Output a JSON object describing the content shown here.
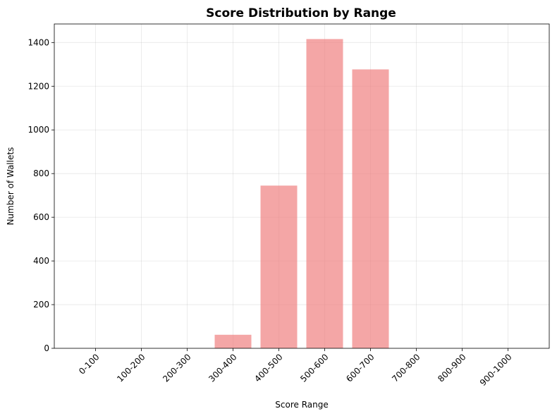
{
  "chart_data": {
    "type": "bar",
    "title": "Score Distribution by Range",
    "xlabel": "Score Range",
    "ylabel": "Number of Wallets",
    "categories": [
      "0-100",
      "100-200",
      "200-300",
      "300-400",
      "400-500",
      "500-600",
      "600-700",
      "700-800",
      "800-900",
      "900-1000"
    ],
    "values": [
      0,
      0,
      0,
      62,
      745,
      1416,
      1277,
      0,
      0,
      0
    ],
    "ylim": [
      0,
      1485
    ],
    "yticks": [
      0,
      200,
      400,
      600,
      800,
      1000,
      1200,
      1400
    ],
    "grid": true,
    "bar_color": "#f08080",
    "bar_opacity": 0.7
  }
}
